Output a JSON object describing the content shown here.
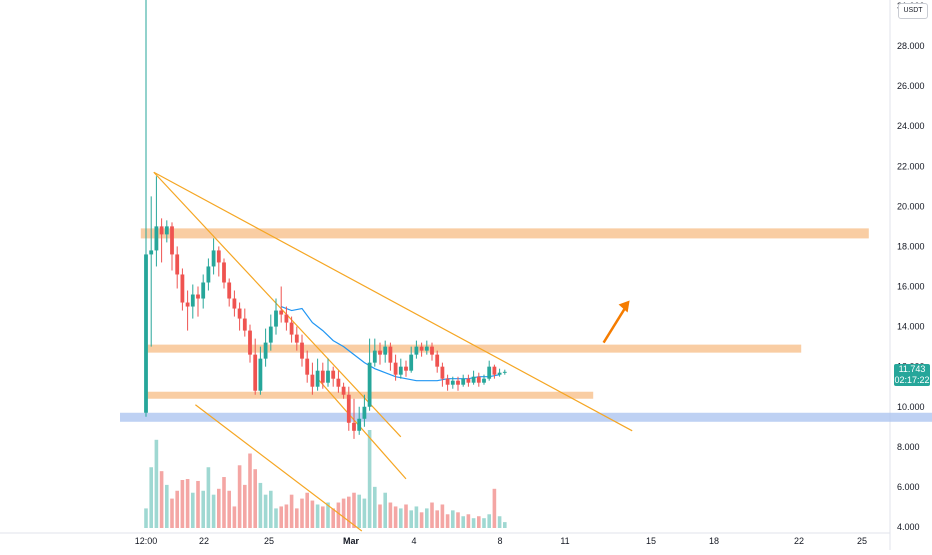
{
  "header": {
    "quote_currency": "USDT"
  },
  "last_price": {
    "value": "11.743",
    "countdown": "02:17:22",
    "color": "#26a69a"
  },
  "colors": {
    "up": "#26a69a",
    "down": "#ef5350",
    "volume_up": "#9fd8d2",
    "volume_down": "#f4a6a4",
    "zone": "#f8c08c",
    "support_zone": "#aec6f0",
    "trendline": "#f5a623",
    "ema": "#2196f3",
    "arrow": "#f57c00"
  },
  "chart_data": {
    "type": "candlestick",
    "price_scale": {
      "ticks": [
        "4.000",
        "6.000",
        "8.000",
        "10.000",
        "12.000",
        "14.000",
        "16.000",
        "18.000",
        "20.000",
        "22.000",
        "24.000",
        "26.000",
        "28.000",
        "31.000"
      ],
      "range": [
        3.8,
        30.8
      ]
    },
    "time_scale": {
      "ticks": [
        "12:00",
        "22",
        "25",
        "Mar",
        "4",
        "8",
        "11",
        "15",
        "18",
        "22",
        "25"
      ],
      "bold_ticks": [
        "Mar"
      ]
    },
    "candles": [
      [
        9.7,
        17.6,
        30.5,
        9.5
      ],
      [
        17.6,
        17.8,
        20.5,
        13.0
      ],
      [
        17.8,
        19.0,
        21.5,
        17.0
      ],
      [
        19.0,
        18.6,
        19.4,
        17.2
      ],
      [
        18.6,
        19.0,
        19.3,
        18.2
      ],
      [
        19.0,
        17.6,
        19.2,
        16.8
      ],
      [
        17.6,
        16.6,
        18.0,
        15.9
      ],
      [
        16.6,
        15.2,
        16.9,
        14.8
      ],
      [
        15.2,
        15.0,
        15.8,
        13.8
      ],
      [
        15.0,
        15.6,
        16.1,
        14.4
      ],
      [
        15.6,
        15.4,
        16.0,
        14.5
      ],
      [
        15.4,
        16.2,
        16.6,
        14.9
      ],
      [
        16.2,
        17.0,
        17.4,
        15.8
      ],
      [
        17.0,
        17.8,
        18.4,
        16.6
      ],
      [
        17.8,
        17.2,
        18.0,
        16.5
      ],
      [
        17.2,
        16.2,
        17.4,
        15.9
      ],
      [
        16.2,
        15.4,
        16.4,
        15.0
      ],
      [
        15.4,
        14.9,
        15.8,
        14.5
      ],
      [
        14.9,
        14.4,
        15.2,
        13.8
      ],
      [
        14.4,
        13.8,
        14.9,
        13.5
      ],
      [
        13.8,
        12.6,
        14.1,
        12.2
      ],
      [
        12.6,
        10.8,
        13.4,
        10.6
      ],
      [
        10.8,
        12.4,
        13.0,
        10.6
      ],
      [
        12.4,
        13.2,
        13.9,
        12.0
      ],
      [
        13.2,
        14.0,
        14.6,
        12.8
      ],
      [
        14.0,
        14.8,
        15.4,
        13.6
      ],
      [
        14.8,
        14.6,
        16.0,
        14.2
      ],
      [
        14.6,
        14.2,
        15.0,
        13.8
      ],
      [
        14.2,
        13.6,
        14.5,
        13.2
      ],
      [
        13.6,
        13.2,
        14.0,
        12.8
      ],
      [
        13.2,
        12.4,
        13.6,
        12.0
      ],
      [
        12.4,
        11.6,
        12.8,
        11.2
      ],
      [
        11.6,
        11.0,
        12.2,
        10.6
      ],
      [
        11.0,
        11.8,
        12.4,
        10.8
      ],
      [
        11.8,
        11.2,
        12.2,
        10.9
      ],
      [
        11.2,
        11.8,
        12.4,
        11.0
      ],
      [
        11.8,
        11.4,
        12.0,
        11.0
      ],
      [
        11.4,
        11.0,
        11.8,
        10.7
      ],
      [
        11.0,
        10.6,
        11.2,
        10.4
      ],
      [
        10.6,
        9.2,
        11.0,
        8.8
      ],
      [
        9.2,
        8.8,
        10.4,
        8.4
      ],
      [
        8.8,
        9.4,
        10.0,
        8.6
      ],
      [
        9.4,
        10.0,
        10.6,
        9.0
      ],
      [
        10.0,
        12.2,
        13.4,
        9.8
      ],
      [
        12.2,
        12.8,
        13.4,
        12.0
      ],
      [
        12.8,
        12.6,
        13.2,
        12.1
      ],
      [
        12.6,
        13.0,
        13.3,
        12.2
      ],
      [
        13.0,
        12.2,
        13.2,
        11.8
      ],
      [
        12.2,
        11.6,
        12.6,
        11.3
      ],
      [
        11.6,
        12.0,
        12.4,
        11.4
      ],
      [
        12.0,
        11.8,
        12.3,
        11.5
      ],
      [
        11.8,
        12.6,
        13.0,
        11.7
      ],
      [
        12.6,
        13.0,
        13.3,
        12.4
      ],
      [
        13.0,
        12.8,
        13.2,
        12.5
      ],
      [
        12.8,
        13.0,
        13.3,
        12.6
      ],
      [
        13.0,
        12.6,
        13.2,
        12.3
      ],
      [
        12.6,
        12.0,
        12.8,
        11.7
      ],
      [
        12.0,
        11.4,
        12.2,
        11.0
      ],
      [
        11.4,
        11.1,
        11.6,
        10.8
      ],
      [
        11.1,
        11.3,
        11.5,
        10.9
      ],
      [
        11.3,
        11.1,
        11.5,
        10.8
      ],
      [
        11.1,
        11.4,
        11.6,
        11.0
      ],
      [
        11.4,
        11.2,
        11.6,
        11.0
      ],
      [
        11.2,
        11.5,
        11.8,
        11.1
      ],
      [
        11.5,
        11.2,
        11.7,
        11.0
      ],
      [
        11.2,
        11.4,
        11.6,
        11.1
      ],
      [
        11.4,
        12.0,
        12.3,
        11.3
      ],
      [
        12.0,
        11.6,
        12.1,
        11.4
      ],
      [
        11.6,
        11.7,
        11.9,
        11.5
      ],
      [
        11.7,
        11.743,
        11.85,
        11.6
      ]
    ],
    "volume_scale_max": 100,
    "volumes": [
      20,
      62,
      90,
      58,
      44,
      30,
      38,
      49,
      50,
      36,
      48,
      38,
      62,
      34,
      40,
      52,
      38,
      22,
      64,
      44,
      76,
      60,
      46,
      34,
      38,
      20,
      22,
      24,
      34,
      20,
      30,
      36,
      28,
      24,
      22,
      26,
      20,
      26,
      30,
      32,
      36,
      34,
      30,
      100,
      42,
      24,
      36,
      26,
      22,
      20,
      24,
      18,
      22,
      16,
      20,
      26,
      18,
      24,
      14,
      18,
      16,
      12,
      14,
      10,
      12,
      10,
      14,
      40,
      12,
      6
    ],
    "ema": [
      15.0,
      14.8,
      14.9,
      14.2,
      13.8,
      13.3,
      13.0,
      12.6,
      12.2,
      11.9,
      11.7,
      11.5,
      11.4,
      11.3,
      11.3,
      11.3,
      11.4,
      11.4,
      11.4,
      11.5,
      11.5,
      11.6
    ],
    "ema_start_index": 26,
    "zones": [
      {
        "from": 18.4,
        "to": 18.9,
        "start_index": -1,
        "end_index": 139,
        "kind": "resistance"
      },
      {
        "from": 12.7,
        "to": 13.1,
        "start_index": 0,
        "end_index": 126,
        "kind": "resistance"
      },
      {
        "from": 10.4,
        "to": 10.75,
        "start_index": 0,
        "end_index": 86,
        "kind": "support"
      },
      {
        "from": 9.25,
        "to": 9.7,
        "start_index": -5,
        "end_index": 161,
        "kind": "support_strong"
      }
    ],
    "trendlines": [
      {
        "from": [
          1.5,
          21.7
        ],
        "to": [
          93.5,
          8.8
        ]
      },
      {
        "from": [
          1.5,
          21.7
        ],
        "to": [
          49.0,
          8.5
        ]
      },
      {
        "from": [
          9.5,
          10.1
        ],
        "to": [
          41.5,
          3.8
        ]
      },
      {
        "from": [
          33.0,
          11.4
        ],
        "to": [
          50.0,
          6.4
        ]
      }
    ],
    "arrow": {
      "from": [
        88.0,
        13.2
      ],
      "to": [
        93.0,
        15.3
      ]
    }
  }
}
